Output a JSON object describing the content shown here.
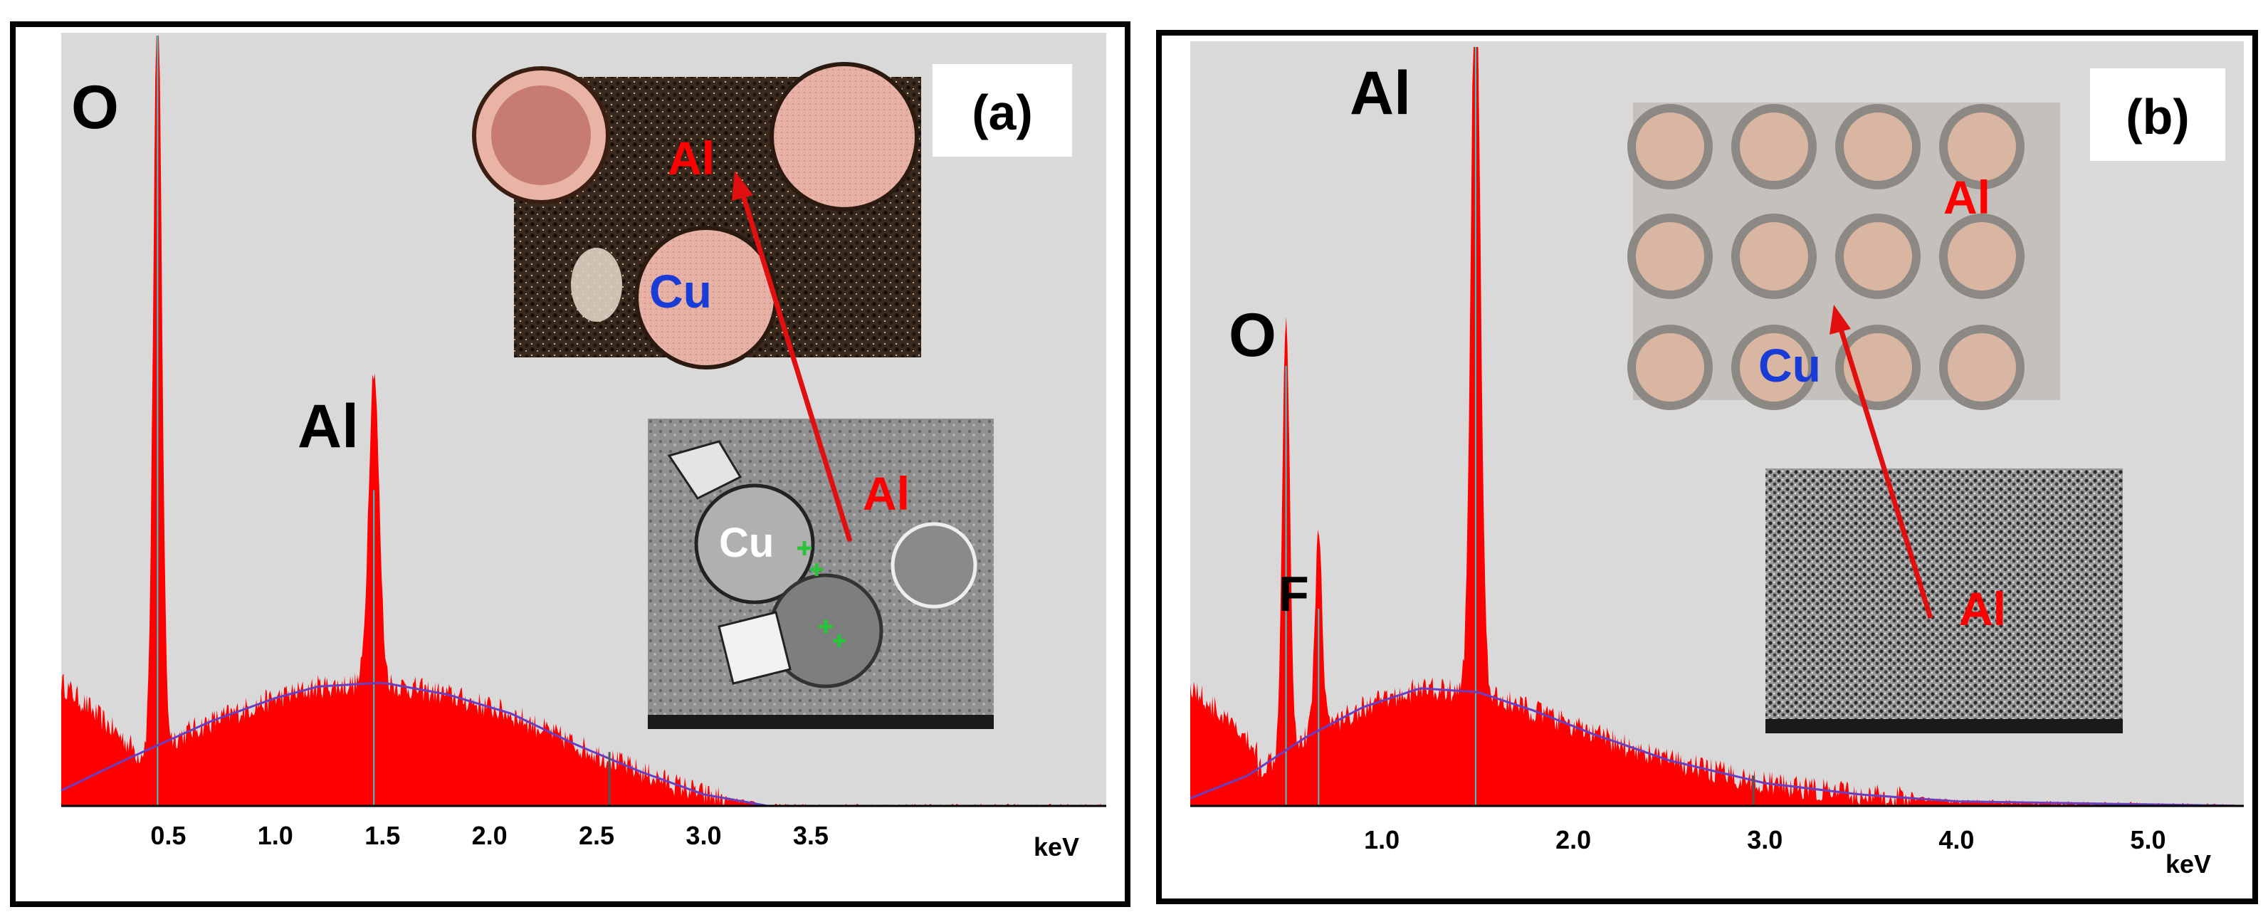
{
  "chart_data": [
    {
      "type": "area",
      "panel_label": "(a)",
      "xlabel": "keV",
      "xlim": [
        0.0,
        4.88
      ],
      "ylim": [
        0,
        100
      ],
      "xticks": [
        0.5,
        1.0,
        1.5,
        2.0,
        2.5,
        3.0,
        3.5
      ],
      "tick_labels": [
        "0.5",
        "1.0",
        "1.5",
        "2.0",
        "2.5",
        "3.0",
        "3.5"
      ],
      "colors": {
        "spectrum": "#ff0000",
        "background_fit": "#6a3fbf",
        "plot_bg": "#d9d9d9",
        "peak_marker": "#33cccc"
      },
      "peaks": [
        {
          "element": "O",
          "energy": 0.45,
          "height": 100
        },
        {
          "element": "Al",
          "energy": 1.46,
          "height": 41
        }
      ],
      "background": {
        "x": [
          0.0,
          0.3,
          0.7,
          1.0,
          1.2,
          1.5,
          1.8,
          2.1,
          2.4,
          2.7,
          3.0,
          3.3
        ],
        "y": [
          2,
          6,
          11,
          14,
          15.5,
          16,
          14.5,
          12,
          8,
          4.5,
          1.5,
          0
        ]
      },
      "minor_lines": [
        {
          "energy": 2.56,
          "height": 7
        }
      ],
      "insets": [
        {
          "kind": "optical",
          "labels": [
            "Al",
            "Cu"
          ]
        },
        {
          "kind": "sem",
          "labels": [
            "Cu",
            "Al"
          ]
        }
      ]
    },
    {
      "type": "area",
      "panel_label": "(b)",
      "xlabel": "keV",
      "xlim": [
        0.0,
        5.5
      ],
      "ylim": [
        0,
        100
      ],
      "xticks": [
        1.0,
        2.0,
        3.0,
        4.0,
        5.0
      ],
      "tick_labels": [
        "1.0",
        "2.0",
        "3.0",
        "4.0",
        "5.0"
      ],
      "colors": {
        "spectrum": "#ff0000",
        "background_fit": "#6a3fbf",
        "plot_bg": "#d9d9d9",
        "peak_marker": "#33cccc"
      },
      "peaks": [
        {
          "element": "O",
          "energy": 0.5,
          "height": 58
        },
        {
          "element": "F",
          "energy": 0.67,
          "height": 26
        },
        {
          "element": "Al",
          "energy": 1.49,
          "height": 100
        }
      ],
      "background": {
        "x": [
          0.0,
          0.3,
          0.6,
          0.9,
          1.2,
          1.5,
          1.8,
          2.1,
          2.5,
          3.0,
          3.5,
          4.0,
          5.5
        ],
        "y": [
          1,
          4,
          9,
          13,
          15.5,
          15,
          12.5,
          9.5,
          6,
          3,
          1.5,
          0.6,
          0
        ]
      },
      "minor_lines": [
        {
          "energy": 2.94,
          "height": 4
        }
      ],
      "insets": [
        {
          "kind": "optical",
          "labels": [
            "Al",
            "Cu"
          ]
        },
        {
          "kind": "sem",
          "labels": [
            "Al"
          ]
        }
      ]
    }
  ]
}
